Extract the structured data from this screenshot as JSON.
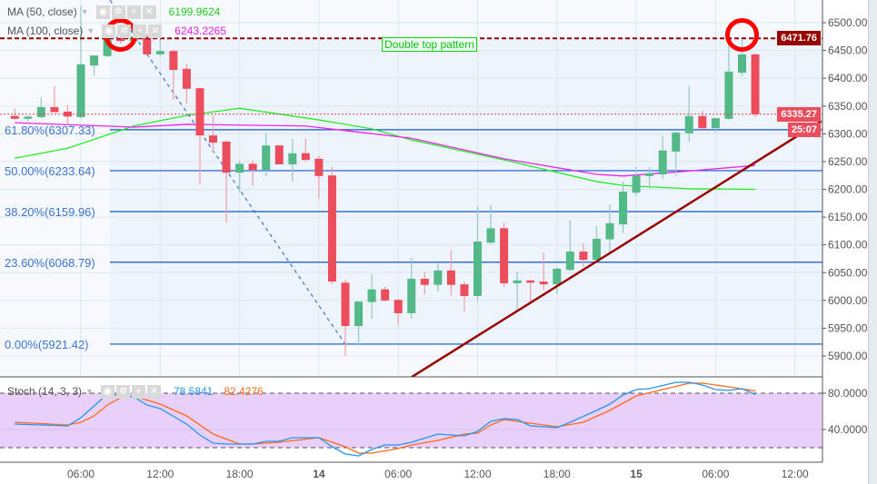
{
  "chart_data": {
    "type": "candlestick",
    "interval": "1h",
    "price_axis": {
      "range": [
        5860,
        6541
      ],
      "ticks": [
        "6500.00",
        "6450.00",
        "6400.00",
        "6350.00",
        "6300.00",
        "6250.00",
        "6200.00",
        "6150.00",
        "6100.00",
        "6050.00",
        "6000.00",
        "5950.00",
        "5900.00"
      ]
    },
    "time_axis": {
      "ticks": [
        {
          "h": 6,
          "label": "06:00"
        },
        {
          "h": 12,
          "label": "12:00"
        },
        {
          "h": 18,
          "label": "18:00"
        },
        {
          "h": 24,
          "label": "14"
        },
        {
          "h": 30,
          "label": "06:00"
        },
        {
          "h": 36,
          "label": "12:00"
        },
        {
          "h": 42,
          "label": "18:00"
        },
        {
          "h": 48,
          "label": "15"
        },
        {
          "h": 54,
          "label": "06:00"
        },
        {
          "h": 60,
          "label": "12:00"
        }
      ]
    },
    "candles": [
      [
        1,
        6332,
        6346,
        6325,
        6327
      ],
      [
        2,
        6327,
        6333,
        6322,
        6331
      ],
      [
        3,
        6330,
        6366,
        6328,
        6348
      ],
      [
        4,
        6348,
        6386,
        6338,
        6339
      ],
      [
        5,
        6340,
        6351,
        6314,
        6331
      ],
      [
        6,
        6330,
        6530,
        6328,
        6425
      ],
      [
        7,
        6423,
        6441,
        6404,
        6441
      ],
      [
        8,
        6440,
        6490,
        6438,
        6476
      ],
      [
        9,
        6476,
        6482,
        6462,
        6467
      ],
      [
        10,
        6467,
        6478,
        6460,
        6475
      ],
      [
        11,
        6475,
        6480,
        6440,
        6443
      ],
      [
        12,
        6443,
        6470,
        6440,
        6449
      ],
      [
        13,
        6449,
        6452,
        6361,
        6415
      ],
      [
        14,
        6417,
        6426,
        6354,
        6381
      ],
      [
        15,
        6382,
        6384,
        6209,
        6297
      ],
      [
        16,
        6297,
        6333,
        6266,
        6284
      ],
      [
        17,
        6286,
        6288,
        6140,
        6230
      ],
      [
        18,
        6230,
        6251,
        6194,
        6246
      ],
      [
        19,
        6246,
        6252,
        6206,
        6235
      ],
      [
        20,
        6235,
        6302,
        6224,
        6279
      ],
      [
        21,
        6279,
        6280,
        6245,
        6245
      ],
      [
        22,
        6245,
        6291,
        6214,
        6265
      ],
      [
        23,
        6265,
        6291,
        6250,
        6253
      ],
      [
        24,
        6255,
        6260,
        6183,
        6224
      ],
      [
        25,
        6225,
        6240,
        6029,
        6034
      ],
      [
        26,
        6032,
        6038,
        5900,
        5954
      ],
      [
        27,
        5954,
        5998,
        5921,
        5998
      ],
      [
        28,
        5997,
        6047,
        5967,
        6020
      ],
      [
        29,
        6020,
        6025,
        5998,
        6000
      ],
      [
        30,
        6001,
        6003,
        5957,
        5977
      ],
      [
        31,
        5977,
        6077,
        5967,
        6039
      ],
      [
        32,
        6039,
        6052,
        6011,
        6028
      ],
      [
        33,
        6028,
        6067,
        6016,
        6054
      ],
      [
        34,
        6054,
        6091,
        6009,
        6028
      ],
      [
        35,
        6029,
        6034,
        5980,
        6008
      ],
      [
        36,
        6008,
        6170,
        5998,
        6106
      ],
      [
        37,
        6104,
        6171,
        6101,
        6130
      ],
      [
        38,
        6130,
        6140,
        6024,
        6031
      ],
      [
        39,
        6031,
        6052,
        5980,
        6036
      ],
      [
        40,
        6036,
        6037,
        5993,
        6032
      ],
      [
        41,
        6034,
        6086,
        6019,
        6029
      ],
      [
        42,
        6029,
        6060,
        6011,
        6057
      ],
      [
        43,
        6055,
        6145,
        6053,
        6088
      ],
      [
        44,
        6088,
        6103,
        6060,
        6073
      ],
      [
        45,
        6073,
        6134,
        6071,
        6111
      ],
      [
        46,
        6110,
        6173,
        6083,
        6139
      ],
      [
        47,
        6137,
        6214,
        6121,
        6196
      ],
      [
        48,
        6194,
        6240,
        6188,
        6225
      ],
      [
        49,
        6224,
        6240,
        6201,
        6229
      ],
      [
        50,
        6227,
        6297,
        6219,
        6270
      ],
      [
        51,
        6268,
        6304,
        6225,
        6302
      ],
      [
        52,
        6301,
        6386,
        6286,
        6332
      ],
      [
        53,
        6332,
        6341,
        6310,
        6310
      ],
      [
        54,
        6310,
        6328,
        6302,
        6328
      ],
      [
        55,
        6327,
        6492,
        6325,
        6412
      ],
      [
        56,
        6410,
        6475,
        6404,
        6443
      ],
      [
        57,
        6443,
        6445,
        6330,
        6335.27
      ]
    ],
    "candle_format": [
      "hour",
      "open",
      "high",
      "low",
      "close"
    ],
    "colors": {
      "up": "#53b987",
      "down": "#eb4d5c",
      "up_wick": "#9ec9c9",
      "down_wick": "#f2a3ad",
      "ma50": "#22ee22",
      "ma100": "#ee22ee",
      "fib": "#1155cc",
      "trendline": "#990000",
      "stoch_k": "#2196f3",
      "stoch_d": "#ff6a1a",
      "stoch_band": "#e9d0fb",
      "circle": "#ff0000",
      "pattern": "#00cc00"
    },
    "ma50": {
      "label": "MA (50, close)",
      "value": "6199.9624",
      "points": [
        [
          1,
          6256
        ],
        [
          5,
          6274
        ],
        [
          10,
          6314
        ],
        [
          14,
          6333
        ],
        [
          18,
          6346
        ],
        [
          24,
          6325
        ],
        [
          28,
          6309
        ],
        [
          31,
          6289
        ],
        [
          38,
          6253
        ],
        [
          45,
          6214
        ],
        [
          47,
          6207
        ],
        [
          52,
          6201
        ],
        [
          57,
          6200
        ]
      ]
    },
    "ma100": {
      "label": "MA (100, close)",
      "value": "6243.2265",
      "points": [
        [
          1,
          6320
        ],
        [
          10,
          6312
        ],
        [
          14,
          6317
        ],
        [
          23,
          6314
        ],
        [
          31,
          6292
        ],
        [
          38,
          6255
        ],
        [
          45,
          6227
        ],
        [
          47,
          6224
        ],
        [
          52,
          6233
        ],
        [
          57,
          6243
        ]
      ]
    },
    "fib_levels": [
      {
        "label": "61.80%(6307.33)",
        "price": 6307.33
      },
      {
        "label": "50.00%(6233.64)",
        "price": 6233.64
      },
      {
        "label": "38.20%(6159.96)",
        "price": 6159.96
      },
      {
        "label": "23.60%(6068.79)",
        "price": 6068.79
      },
      {
        "label": "0.00%(5921.42)",
        "price": 5921.42
      }
    ],
    "fib_top": 6471.76,
    "resistance_line": {
      "price": 6471.76,
      "label": "6471.76"
    },
    "last_price": {
      "price": 6335.27,
      "label": "6335.27",
      "countdown": "25:07"
    },
    "fib_trend_line": [
      [
        8.2,
        6541
      ],
      [
        26,
        5921
      ]
    ],
    "support_trendline": [
      [
        31,
        5862
      ],
      [
        62,
        6323
      ]
    ],
    "annotation": {
      "text": "Double top pattern",
      "h": 32.4,
      "price": 6460
    },
    "circles": [
      [
        9,
        6478
      ],
      [
        56,
        6478
      ]
    ],
    "stoch": {
      "label": "Stoch (14, 3, 3)",
      "k_value": "78.5841",
      "d_value": "82.4276",
      "ticks": [
        "80.0000",
        "40.0000"
      ],
      "band": [
        20,
        80
      ],
      "range": [
        4,
        97
      ],
      "k": [
        [
          1,
          46
        ],
        [
          5,
          44
        ],
        [
          6,
          53
        ],
        [
          8,
          79
        ],
        [
          10,
          76
        ],
        [
          11,
          67
        ],
        [
          12,
          63
        ],
        [
          14,
          46
        ],
        [
          15,
          34
        ],
        [
          16,
          25
        ],
        [
          17,
          24
        ],
        [
          19,
          24
        ],
        [
          20,
          27
        ],
        [
          21,
          27
        ],
        [
          22,
          31
        ],
        [
          24,
          31
        ],
        [
          25,
          21
        ],
        [
          26,
          13
        ],
        [
          27,
          11
        ],
        [
          28,
          18
        ],
        [
          29,
          23
        ],
        [
          30,
          23
        ],
        [
          31,
          26
        ],
        [
          33,
          35
        ],
        [
          35,
          33
        ],
        [
          36,
          38
        ],
        [
          37,
          49
        ],
        [
          38,
          52
        ],
        [
          39,
          51
        ],
        [
          40,
          44
        ],
        [
          42,
          42
        ],
        [
          43,
          48
        ],
        [
          45,
          61
        ],
        [
          46,
          68
        ],
        [
          47,
          78
        ],
        [
          48,
          84
        ],
        [
          49,
          85
        ],
        [
          51,
          92
        ],
        [
          52,
          92
        ],
        [
          53,
          89
        ],
        [
          54,
          84
        ],
        [
          55,
          83
        ],
        [
          56,
          85
        ],
        [
          57,
          78.58
        ]
      ],
      "d": [
        [
          1,
          48
        ],
        [
          5,
          45
        ],
        [
          6,
          48
        ],
        [
          7,
          55
        ],
        [
          8,
          67
        ],
        [
          9,
          75
        ],
        [
          10,
          77
        ],
        [
          12,
          68
        ],
        [
          14,
          55
        ],
        [
          16,
          35
        ],
        [
          18,
          24
        ],
        [
          19,
          24
        ],
        [
          21,
          26
        ],
        [
          24,
          31
        ],
        [
          26,
          21
        ],
        [
          27,
          14
        ],
        [
          28,
          14
        ],
        [
          30,
          19
        ],
        [
          31,
          23
        ],
        [
          33,
          28
        ],
        [
          35,
          35
        ],
        [
          36,
          36
        ],
        [
          37,
          45
        ],
        [
          38,
          51
        ],
        [
          40,
          47
        ],
        [
          42,
          43
        ],
        [
          44,
          48
        ],
        [
          46,
          61
        ],
        [
          48,
          77
        ],
        [
          50,
          84
        ],
        [
          52,
          91
        ],
        [
          53,
          91
        ],
        [
          55,
          87
        ],
        [
          57,
          82.43
        ]
      ]
    }
  },
  "legend_buttons": {
    "eye": "eye-icon",
    "gear": "gear-icon",
    "plus": "plus-icon",
    "close": "close-icon"
  }
}
